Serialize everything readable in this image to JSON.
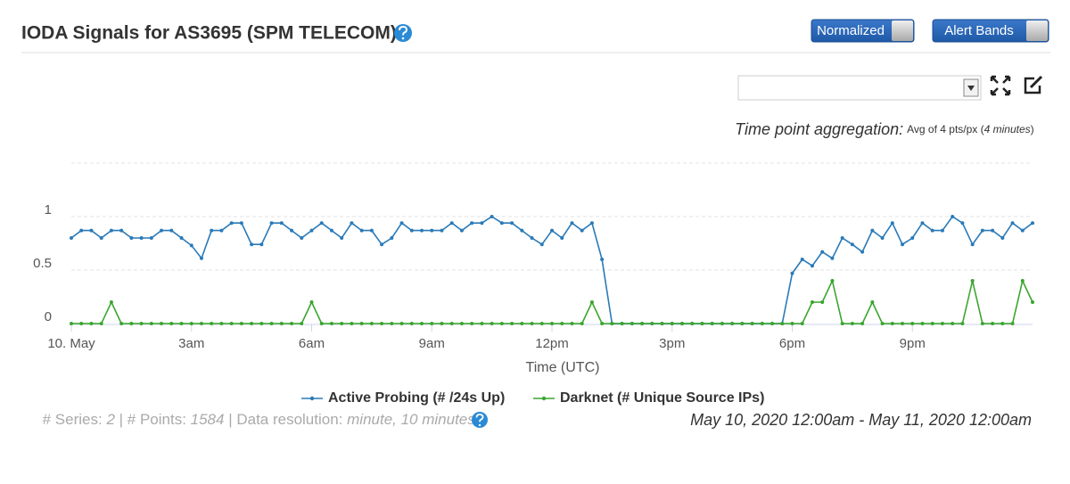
{
  "header": {
    "title": "IODA Signals for AS3695 (SPM TELECOM)",
    "buttons": [
      "Normalized",
      "Alert Bands"
    ]
  },
  "aggregation": {
    "label": "Time point aggregation:",
    "text": "Avg of 4 pts/px (",
    "duration": "4 minutes",
    "close": ")"
  },
  "footer": {
    "series_label": "# Series: ",
    "series": 2,
    "points_label": " | # Points: ",
    "points": 1584,
    "resolution_label": " | Data resolution: ",
    "resolution": "minute, 10 minutes",
    "range": "May 10, 2020 12:00am - May 11, 2020 12:00am"
  },
  "chart_data": {
    "type": "line",
    "x_label": "Time (UTC)",
    "x": [
      0,
      0.25,
      0.5,
      0.75,
      1,
      1.25,
      1.5,
      1.75,
      2,
      2.25,
      2.5,
      2.75,
      3,
      3.25,
      3.5,
      3.75,
      4,
      4.25,
      4.5,
      4.75,
      5,
      5.25,
      5.5,
      5.75,
      6,
      6.25,
      6.5,
      6.75,
      7,
      7.25,
      7.5,
      7.75,
      8,
      8.25,
      8.5,
      8.75,
      9,
      9.25,
      9.5,
      9.75,
      10,
      10.25,
      10.5,
      10.75,
      11,
      11.25,
      11.5,
      11.75,
      12,
      12.25,
      12.5,
      12.75,
      13,
      13.25,
      13.5,
      13.75,
      14,
      14.25,
      14.5,
      14.75,
      15,
      15.25,
      15.5,
      15.75,
      16,
      16.25,
      16.5,
      16.75,
      17,
      17.25,
      17.5,
      17.75,
      18,
      18.25,
      18.5,
      18.75,
      19,
      19.25,
      19.5,
      19.75,
      20,
      20.25,
      20.5,
      20.75,
      21,
      21.25,
      21.5,
      21.75,
      22,
      22.25,
      22.5,
      22.75,
      23,
      23.25,
      23.5,
      23.75,
      24
    ],
    "series": [
      {
        "name": "Active Probing (# /24s Up)",
        "color": "#2a7ab8",
        "values": [
          0.8,
          0.87,
          0.87,
          0.8,
          0.87,
          0.87,
          0.8,
          0.8,
          0.8,
          0.87,
          0.87,
          0.8,
          0.73,
          0.61,
          0.87,
          0.87,
          0.94,
          0.94,
          0.74,
          0.74,
          0.94,
          0.94,
          0.87,
          0.8,
          0.87,
          0.94,
          0.87,
          0.8,
          0.94,
          0.87,
          0.87,
          0.74,
          0.8,
          0.94,
          0.87,
          0.87,
          0.87,
          0.87,
          0.94,
          0.87,
          0.94,
          0.94,
          1.0,
          0.94,
          0.94,
          0.87,
          0.8,
          0.74,
          0.87,
          0.8,
          0.94,
          0.87,
          0.94,
          0.6,
          0,
          0,
          0,
          0,
          0,
          0,
          0,
          0,
          0,
          0,
          0,
          0,
          0,
          0,
          0,
          0,
          0,
          0,
          0.47,
          0.6,
          0.54,
          0.67,
          0.61,
          0.8,
          0.74,
          0.67,
          0.87,
          0.8,
          0.94,
          0.74,
          0.8,
          0.94,
          0.87,
          0.87,
          1.0,
          0.94,
          0.74,
          0.87,
          0.87,
          0.8,
          0.94,
          0.87,
          0.94
        ]
      },
      {
        "name": "Darknet (# Unique Source IPs)",
        "color": "#3aa52e",
        "values": [
          0,
          0,
          0,
          0,
          0.2,
          0,
          0,
          0,
          0,
          0,
          0,
          0,
          0,
          0,
          0,
          0,
          0,
          0,
          0,
          0,
          0,
          0,
          0,
          0,
          0.2,
          0,
          0,
          0,
          0,
          0,
          0,
          0,
          0,
          0,
          0,
          0,
          0,
          0,
          0,
          0,
          0,
          0,
          0,
          0,
          0,
          0,
          0,
          0,
          0,
          0,
          0,
          0,
          0.2,
          0,
          0,
          0,
          0,
          0,
          0,
          0,
          0,
          0,
          0,
          0,
          0,
          0,
          0,
          0,
          0,
          0,
          0,
          0,
          0,
          0,
          0.2,
          0.2,
          0.4,
          0,
          0,
          0,
          0.2,
          0,
          0,
          0,
          0,
          0,
          0,
          0,
          0,
          0,
          0.4,
          0,
          0,
          0,
          0,
          0.4,
          0.2
        ]
      }
    ],
    "xlim": [
      0,
      24
    ],
    "xticks": [
      {
        "value": 0,
        "label": "10. May"
      },
      {
        "value": 3,
        "label": "3am"
      },
      {
        "value": 6,
        "label": "6am"
      },
      {
        "value": 9,
        "label": "9am"
      },
      {
        "value": 12,
        "label": "12pm"
      },
      {
        "value": 15,
        "label": "3pm"
      },
      {
        "value": 18,
        "label": "6pm"
      },
      {
        "value": 21,
        "label": "9pm"
      }
    ],
    "ylim": [
      0,
      1.5
    ],
    "yticks": [
      0,
      0.5,
      1
    ],
    "grid": true
  }
}
